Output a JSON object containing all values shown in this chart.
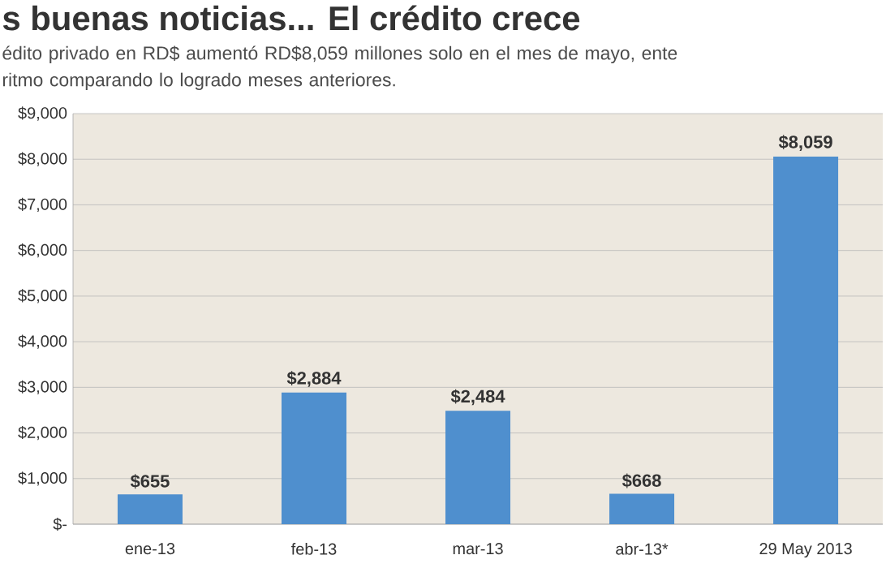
{
  "chart_data": {
    "type": "bar",
    "title": "s buenas noticias... El crédito crece",
    "subtitle": "édito privado en RD$ aumentó RD$8,059 millones solo en el mes de mayo, ente ritmo comparando lo logrado meses anteriores.",
    "categories": [
      "ene-13",
      "feb-13",
      "mar-13",
      "abr-13*",
      "29 May 2013"
    ],
    "values": [
      655,
      2884,
      2484,
      668,
      8059
    ],
    "value_labels": [
      "$655",
      "$2,884",
      "$2,484",
      "$668",
      "$8,059"
    ],
    "color": "#4f8fce",
    "ylim": [
      0,
      9000
    ],
    "yticks": [
      {
        "value": 0,
        "label": "$-"
      },
      {
        "value": 1000,
        "label": "$1,000"
      },
      {
        "value": 2000,
        "label": "$2,000"
      },
      {
        "value": 3000,
        "label": "$3,000"
      },
      {
        "value": 4000,
        "label": "$4,000"
      },
      {
        "value": 5000,
        "label": "$5,000"
      },
      {
        "value": 6000,
        "label": "$6,000"
      },
      {
        "value": 7000,
        "label": "$7,000"
      },
      {
        "value": 8000,
        "label": "$8,000"
      },
      {
        "value": 9000,
        "label": "$9,000"
      }
    ],
    "grid": "y"
  }
}
